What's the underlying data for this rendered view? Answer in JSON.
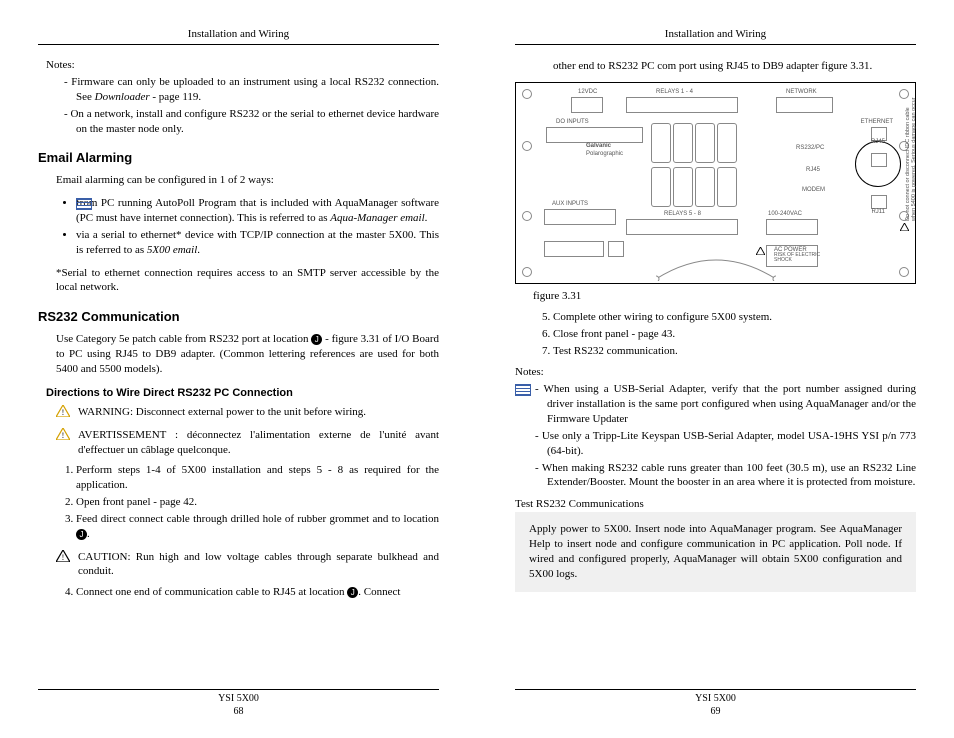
{
  "header": "Installation and Wiring",
  "footer_product": "YSI 5X00",
  "left": {
    "page_num": "68",
    "notes_label": "Notes:",
    "notes": [
      "Firmware can only be uploaded to an instrument using a local RS232 connection. See <span class=\"em\">Downloader</span> -  page 119.",
      "On a network, install and configure RS232 or the serial to ethernet device hardware on the master node only."
    ],
    "h_email": "Email Alarming",
    "email_intro": "Email alarming can be configured in 1 of 2 ways:",
    "email_bullets": [
      "from PC running AutoPoll Program that is included with AquaManager software (PC must have internet connection).  This is referred to as <span class=\"em\">Aqua-Manager email</span>.",
      "via a serial to ethernet* device with TCP/IP connection at the master 5X00. This is referred to as <span class=\"em\">5X00 email</span>."
    ],
    "email_note": "*Serial to ethernet connection requires access to an SMTP server accessible by the local network.",
    "h_rs232": "RS232 Communication",
    "rs232_intro": "Use Category 5e patch cable from RS232 port at location <span class=\"circle-num\">J</span> - figure 3.31 of I/O Board to PC using RJ45 to DB9 adapter.  (Common lettering references are used for both 5400 and 5500 models).",
    "h_directions": "Directions to Wire Direct RS232 PC Connection",
    "warn_en": "WARNING: Disconnect external power to the unit before wiring.",
    "warn_fr": "AVERTISSEMENT : déconnectez l'alimentation externe de l'unité avant d'effectuer un câblage quelconque.",
    "steps_a": [
      "Perform steps 1-4 of 5X00 installation and steps 5 - 8 as required for the application.",
      "Open front panel - page 42.",
      "Feed direct connect cable through drilled hole of rubber grommet and to location <span class=\"circle-num\">J</span>."
    ],
    "caution": "CAUTION: Run high and low voltage cables through separate bulkhead and conduit.",
    "steps_b": [
      "Connect one end of communication cable to RJ45 at location <span class=\"circle-num\">J</span>. Connect"
    ]
  },
  "right": {
    "page_num": "69",
    "cont": "other end to RS232 PC com port using RJ45 to DB9 adapter figure 3.31.",
    "fig_caption": "figure 3.31",
    "steps": [
      "Complete other wiring to configure 5X00 system.",
      "Close front panel - page 43.",
      "Test RS232 communication."
    ],
    "notes_label": "Notes:",
    "notes": [
      "When using a USB-Serial Adapter, verify that the port number assigned during driver installation is the same port configured when using AquaManager and/or the Firmware Updater",
      "Use only a Tripp-Lite Keyspan  USB-Serial Adapter, model USA-19HS YSI p/n 773  (64-bit).",
      "When making RS232 cable runs greater than 100 feet (30.5 m), use an RS232 Line Extender/Booster.  Mount the booster in an area where it is protected from moisture."
    ],
    "test_label": "Test  RS232 Communications",
    "test_body": "Apply power to 5X00.  Insert node into AquaManager program.  See AquaManager Help to insert node and configure communication in PC application. Poll node.  If wired and configured properly,  AquaManager will obtain 5X00 configuration and 5X00 logs.",
    "diagram": {
      "labels": {
        "top1": "12VDC",
        "top2": "RELAYS 1 - 4",
        "top3": "NETWORK",
        "do": "DO INPUTS",
        "galv": "Galvanic",
        "pol": "Polarographic",
        "eth": "ETHERNET",
        "rs": "RS232/PC",
        "rj45a": "RJ45",
        "rj45b": "RJ45",
        "modem": "MODEM",
        "rj11": "RJ11",
        "aux": "AUX INPUTS",
        "rel58": "RELAYS 5 - 8",
        "vac": "100-240VAC",
        "acpower": "AC POWER",
        "risk": "RISK OF ELECTRIC\nSHOCK",
        "side": "Do not connect or disconnect IDC ribbon cable\nwhen 5400 is powered. Serious damage can occur"
      }
    }
  }
}
